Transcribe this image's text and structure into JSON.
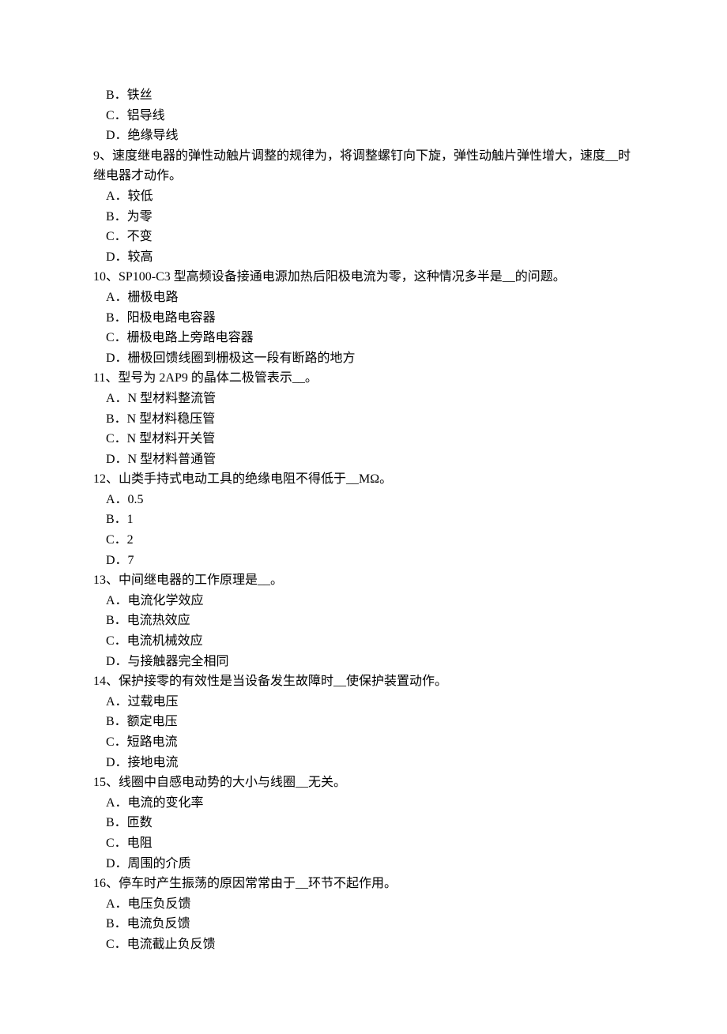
{
  "text_color": "#000000",
  "background_color": "#ffffff",
  "font_size": 16,
  "line_height": 1.6,
  "items": [
    {
      "type": "option",
      "text": "B．铁丝"
    },
    {
      "type": "option",
      "text": "C．铝导线"
    },
    {
      "type": "option",
      "text": "D．绝缘导线"
    },
    {
      "type": "question",
      "text": "9、速度继电器的弹性动触片调整的规律为，将调整螺钉向下旋，弹性动触片弹性增大，速度__时继电器才动作。"
    },
    {
      "type": "option",
      "text": "A．较低"
    },
    {
      "type": "option",
      "text": "B．为零"
    },
    {
      "type": "option",
      "text": "C．不变"
    },
    {
      "type": "option",
      "text": "D．较高"
    },
    {
      "type": "question",
      "text": "10、SP100-C3 型高频设备接通电源加热后阳极电流为零，这种情况多半是__的问题。"
    },
    {
      "type": "option",
      "text": "A．栅极电路"
    },
    {
      "type": "option",
      "text": "B．阳极电路电容器"
    },
    {
      "type": "option",
      "text": "C．栅极电路上旁路电容器"
    },
    {
      "type": "option",
      "text": "D．栅极回馈线圈到栅极这一段有断路的地方"
    },
    {
      "type": "question",
      "text": "11、型号为 2AP9 的晶体二极管表示__。"
    },
    {
      "type": "option",
      "text": "A．N 型材料整流管"
    },
    {
      "type": "option",
      "text": "B．N 型材料稳压管"
    },
    {
      "type": "option",
      "text": "C．N 型材料开关管"
    },
    {
      "type": "option",
      "text": "D．N 型材料普通管"
    },
    {
      "type": "question",
      "text": "12、山类手持式电动工具的绝缘电阻不得低于__MΩ。"
    },
    {
      "type": "option",
      "text": "A．0.5"
    },
    {
      "type": "option",
      "text": "B．1"
    },
    {
      "type": "option",
      "text": "C．2"
    },
    {
      "type": "option",
      "text": "D．7"
    },
    {
      "type": "question",
      "text": "13、中间继电器的工作原理是__。"
    },
    {
      "type": "option",
      "text": "A．电流化学效应"
    },
    {
      "type": "option",
      "text": "B．电流热效应"
    },
    {
      "type": "option",
      "text": "C．电流机械效应"
    },
    {
      "type": "option",
      "text": "D．与接触器完全相同"
    },
    {
      "type": "question",
      "text": "14、保护接零的有效性是当设备发生故障时__使保护装置动作。"
    },
    {
      "type": "option",
      "text": "A．过载电压"
    },
    {
      "type": "option",
      "text": "B．额定电压"
    },
    {
      "type": "option",
      "text": "C．短路电流"
    },
    {
      "type": "option",
      "text": "D．接地电流"
    },
    {
      "type": "question",
      "text": "15、线圈中自感电动势的大小与线圈__无关。"
    },
    {
      "type": "option",
      "text": "A．电流的变化率"
    },
    {
      "type": "option",
      "text": "B．匝数"
    },
    {
      "type": "option",
      "text": "C．电阻"
    },
    {
      "type": "option",
      "text": "D．周围的介质"
    },
    {
      "type": "question",
      "text": "16、停车时产生振荡的原因常常由于__环节不起作用。"
    },
    {
      "type": "option",
      "text": "A．电压负反馈"
    },
    {
      "type": "option",
      "text": "B．电流负反馈"
    },
    {
      "type": "option",
      "text": "C．电流截止负反馈"
    }
  ]
}
